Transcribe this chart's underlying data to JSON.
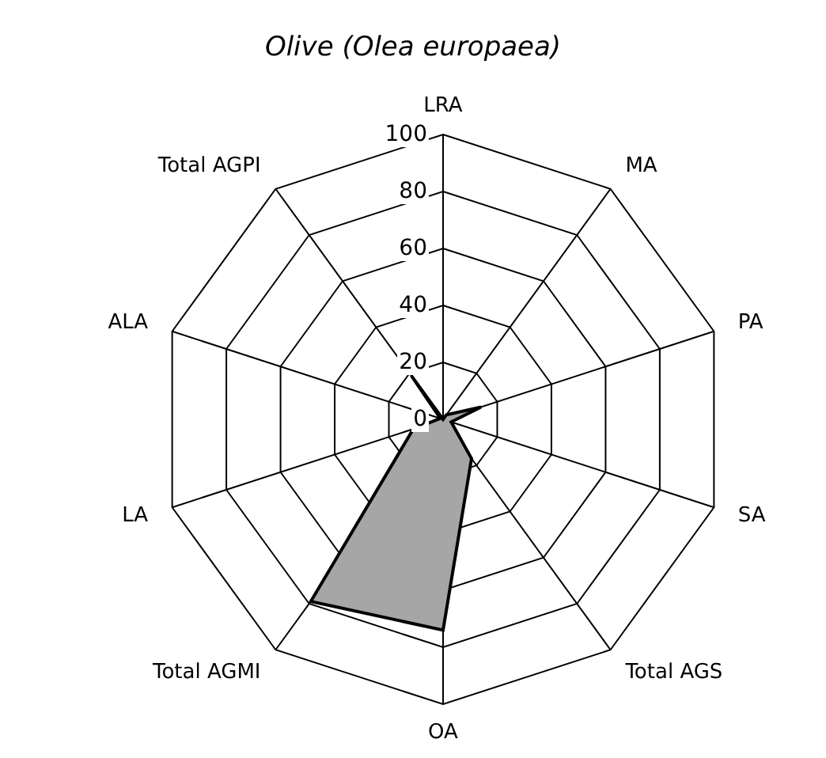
{
  "chart_data": {
    "type": "radar",
    "title": "Olive (Olea europaea)",
    "categories": [
      "LRA",
      "MA",
      "PA",
      "SA",
      "Total AGS",
      "OA",
      "Total AGMI",
      "LA",
      "ALA",
      "Total AGPI"
    ],
    "series": [
      {
        "color": "#a6a6a6",
        "values": [
          0,
          2,
          14,
          3,
          17,
          74,
          79,
          11,
          1,
          19
        ]
      }
    ],
    "ylim": [
      0,
      100
    ],
    "yticks": [
      0,
      20,
      40,
      60,
      80,
      100
    ],
    "grid": true
  }
}
